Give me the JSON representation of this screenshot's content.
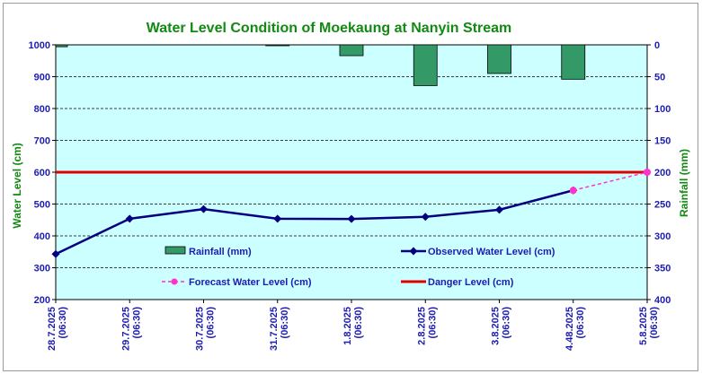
{
  "chart_data": {
    "type": "line",
    "title": "Water Level Condition of Moekaung at Nanyin Stream",
    "ylabel": "Water Level (cm)",
    "y2label": "Rainfall (mm)",
    "ylim": [
      200,
      1000
    ],
    "yticks": [
      200,
      300,
      400,
      500,
      600,
      700,
      800,
      900,
      1000
    ],
    "y2lim": [
      0,
      400
    ],
    "y2_inverted": true,
    "y2ticks": [
      0,
      50,
      100,
      150,
      200,
      250,
      300,
      350,
      400
    ],
    "categories": [
      [
        "28.7.2025",
        "(06:30)"
      ],
      [
        "29.7.2025",
        "(06:30)"
      ],
      [
        "30.7.2025",
        "(06:30)"
      ],
      [
        "31.7.2025",
        "(06:30)"
      ],
      [
        "1.8.2025",
        "(06:30)"
      ],
      [
        "2.8.2025",
        "(06:30)"
      ],
      [
        "3.8.2025",
        "(06:30)"
      ],
      [
        "4.48.2025",
        "(06:30)"
      ],
      [
        "5.8.2025",
        "(06:30)"
      ]
    ],
    "series": [
      {
        "name": "Rainfall (mm)",
        "kind": "bar",
        "axis": "right",
        "color": "#339966",
        "values": [
          3,
          0,
          0,
          1,
          17,
          64,
          45,
          54,
          null
        ]
      },
      {
        "name": "Observed Water Level (cm)",
        "kind": "line",
        "axis": "left",
        "color": "#000080",
        "values": [
          343,
          454,
          484,
          454,
          453,
          460,
          482,
          543,
          null
        ]
      },
      {
        "name": "Forecast Water Level (cm)",
        "kind": "dashed-line",
        "axis": "left",
        "color": "#ff33cc",
        "values": [
          null,
          null,
          null,
          null,
          null,
          null,
          null,
          543,
          600
        ]
      },
      {
        "name": "Danger Level (cm)",
        "kind": "hline",
        "axis": "left",
        "color": "#e00000",
        "value": 600
      }
    ],
    "grid": "horizontal dashed",
    "legend_placement": "bottom-center",
    "plot_background": "#ccffff"
  }
}
